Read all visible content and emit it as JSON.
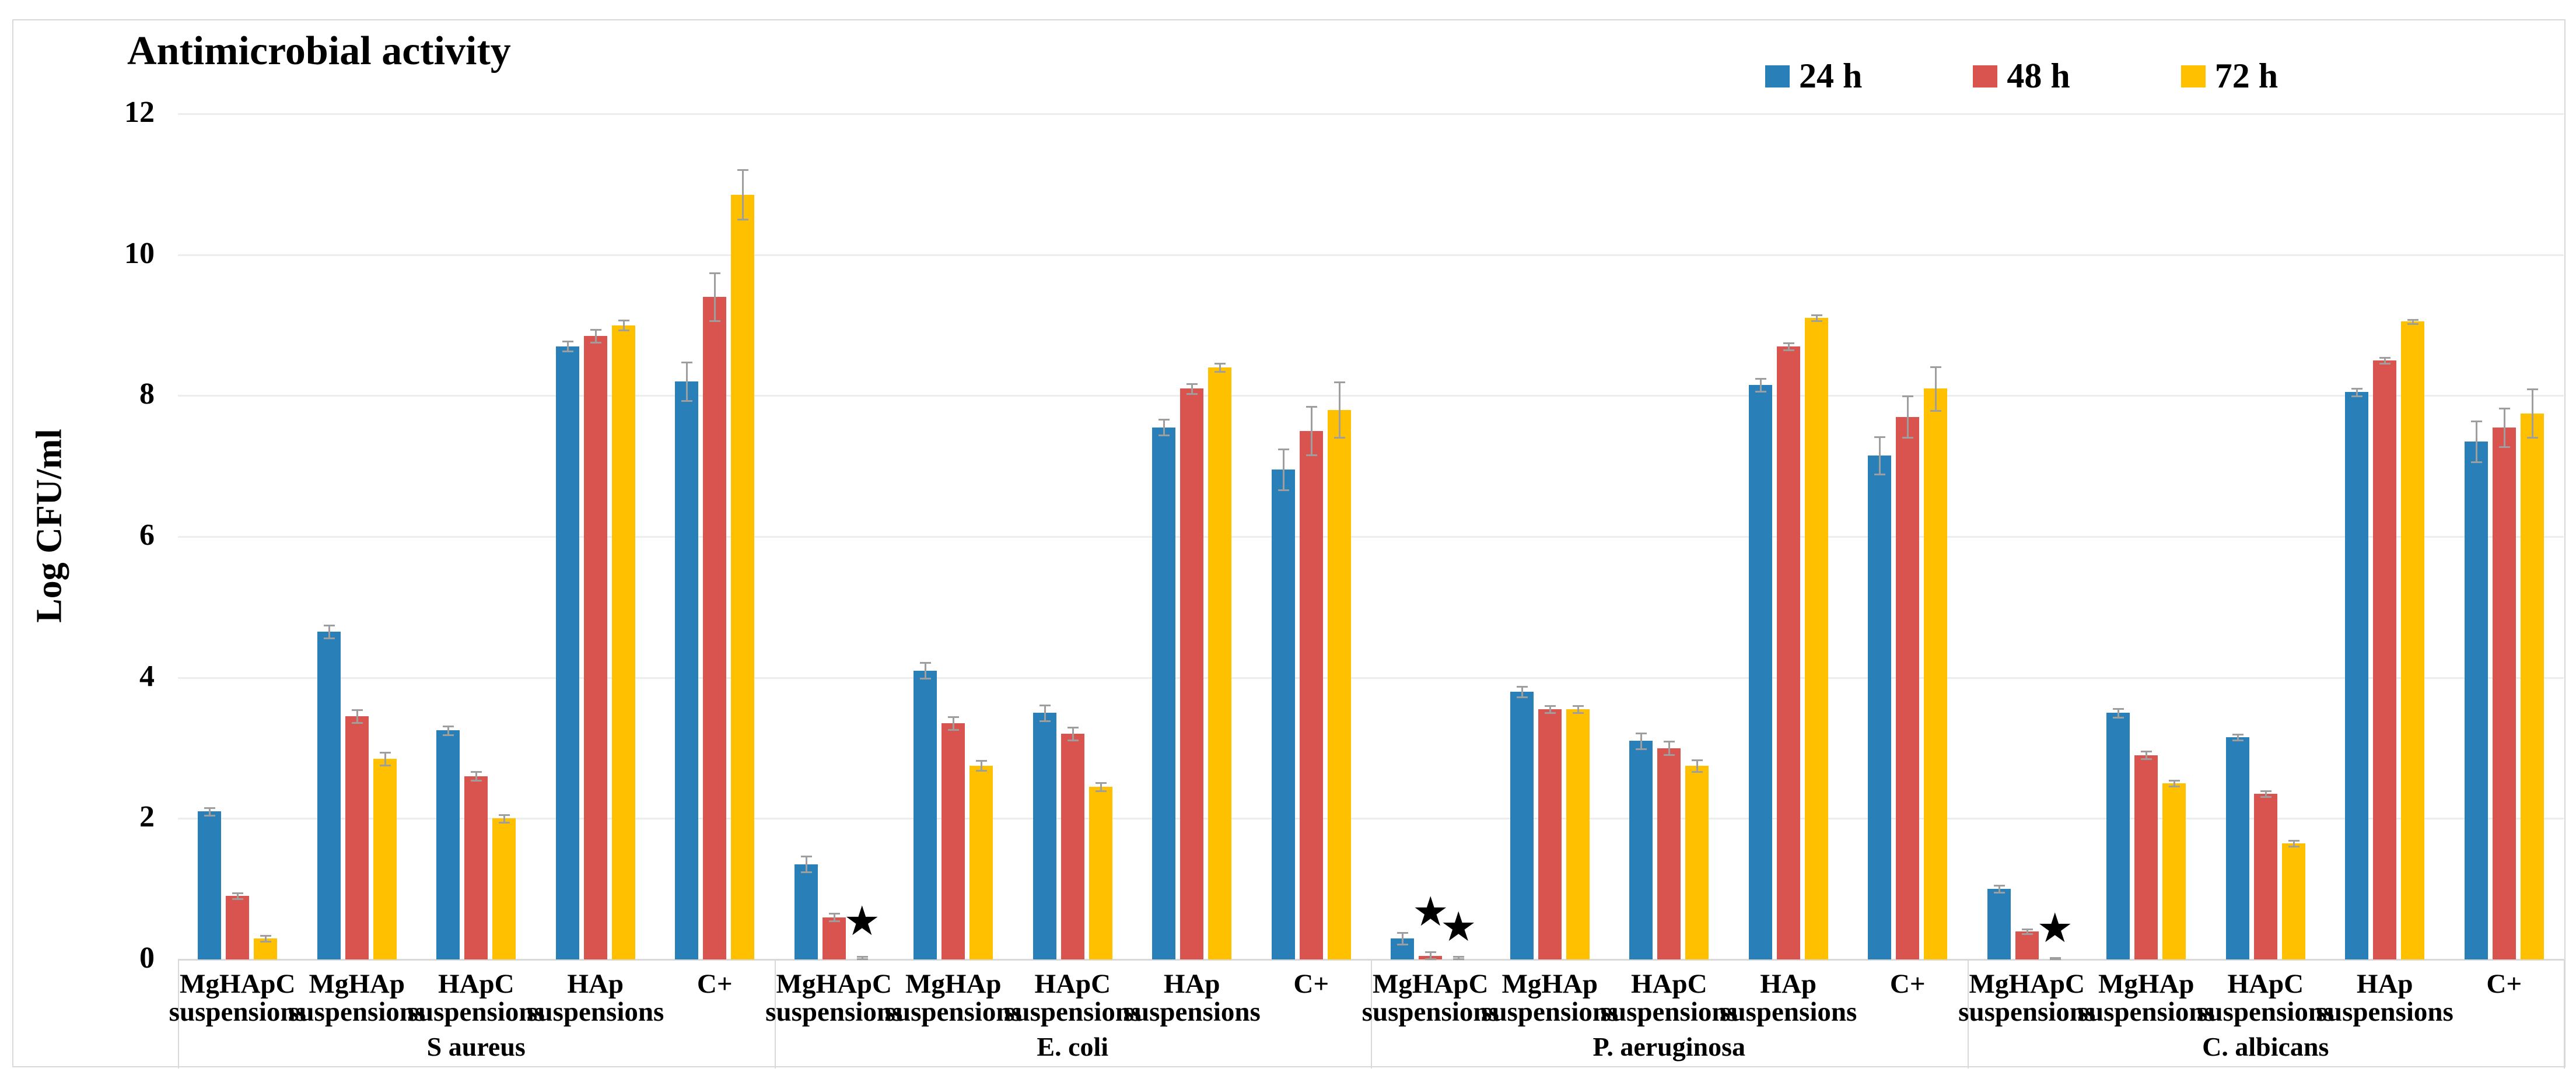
{
  "figure": {
    "title": "Antimicrobial activity",
    "y_axis": {
      "label": "Log CFU/ml"
    }
  },
  "chart_data": {
    "type": "bar",
    "title": "Antimicrobial activity",
    "xlabel": "",
    "ylabel": "Log CFU/ml",
    "ylim": [
      0,
      12
    ],
    "yticks": [
      0,
      2,
      4,
      6,
      8,
      10,
      12
    ],
    "grid": true,
    "legend_position": "top-right",
    "annotation_symbol": "★",
    "series": [
      {
        "name": "24 h",
        "color": "#2980B9"
      },
      {
        "name": "48 h",
        "color": "#D9534F"
      },
      {
        "name": "72 h",
        "color": "#FFC000"
      }
    ],
    "organisms": [
      {
        "name": "S aureus",
        "groups": [
          {
            "label": "MgHApC",
            "sublabel": "suspensions",
            "values": [
              2.1,
              0.9,
              0.3
            ],
            "errors": [
              0.06,
              0.05,
              0.05
            ]
          },
          {
            "label": "MgHAp",
            "sublabel": "suspensions",
            "values": [
              4.65,
              3.45,
              2.85
            ],
            "errors": [
              0.1,
              0.1,
              0.1
            ]
          },
          {
            "label": "HApC",
            "sublabel": "suspensions",
            "values": [
              3.25,
              2.6,
              2.0
            ],
            "errors": [
              0.07,
              0.07,
              0.06
            ]
          },
          {
            "label": "HAp",
            "sublabel": "suspensions",
            "values": [
              8.7,
              8.85,
              9.0
            ],
            "errors": [
              0.08,
              0.1,
              0.08
            ]
          },
          {
            "label": "C+",
            "sublabel": "",
            "values": [
              8.2,
              9.4,
              10.85
            ],
            "errors": [
              0.28,
              0.35,
              0.36
            ]
          }
        ],
        "annotations": []
      },
      {
        "name": "E. coli",
        "groups": [
          {
            "label": "MgHApC",
            "sublabel": "suspensions",
            "values": [
              1.35,
              0.6,
              0
            ],
            "errors": [
              0.12,
              0.06,
              0.05
            ]
          },
          {
            "label": "MgHAp",
            "sublabel": "suspensions",
            "values": [
              4.1,
              3.35,
              2.75
            ],
            "errors": [
              0.12,
              0.1,
              0.08
            ]
          },
          {
            "label": "HApC",
            "sublabel": "suspensions",
            "values": [
              3.5,
              3.2,
              2.45
            ],
            "errors": [
              0.12,
              0.1,
              0.07
            ]
          },
          {
            "label": "HAp",
            "sublabel": "suspensions",
            "values": [
              7.55,
              8.1,
              8.4
            ],
            "errors": [
              0.12,
              0.08,
              0.07
            ]
          },
          {
            "label": "C+",
            "sublabel": "",
            "values": [
              6.95,
              7.5,
              7.8
            ],
            "errors": [
              0.3,
              0.35,
              0.4
            ]
          }
        ],
        "annotations": [
          {
            "group": "MgHApC",
            "slot": 2,
            "value_center": 0.55
          }
        ]
      },
      {
        "name": "P. aeruginosa",
        "groups": [
          {
            "label": "MgHApC",
            "sublabel": "suspensions",
            "values": [
              0.3,
              0.05,
              0
            ],
            "errors": [
              0.09,
              0.07,
              0.05
            ]
          },
          {
            "label": "MgHAp",
            "sublabel": "suspensions",
            "values": [
              3.8,
              3.55,
              3.55
            ],
            "errors": [
              0.08,
              0.06,
              0.06
            ]
          },
          {
            "label": "HApC",
            "sublabel": "suspensions",
            "values": [
              3.1,
              3.0,
              2.75
            ],
            "errors": [
              0.12,
              0.1,
              0.09
            ]
          },
          {
            "label": "HAp",
            "sublabel": "suspensions",
            "values": [
              8.15,
              8.7,
              9.1
            ],
            "errors": [
              0.1,
              0.06,
              0.05
            ]
          },
          {
            "label": "C+",
            "sublabel": "",
            "values": [
              7.15,
              7.7,
              8.1
            ],
            "errors": [
              0.27,
              0.3,
              0.32
            ]
          }
        ],
        "annotations": [
          {
            "group": "MgHApC",
            "slot": 1,
            "value_center": 0.68
          },
          {
            "group": "MgHApC",
            "slot": 2,
            "value_center": 0.46
          }
        ]
      },
      {
        "name": "C. albicans",
        "groups": [
          {
            "label": "MgHApC",
            "sublabel": "suspensions",
            "values": [
              1.0,
              0.4,
              0
            ],
            "errors": [
              0.06,
              0.04,
              0.03
            ]
          },
          {
            "label": "MgHAp",
            "sublabel": "suspensions",
            "values": [
              3.5,
              2.9,
              2.5
            ],
            "errors": [
              0.07,
              0.06,
              0.05
            ]
          },
          {
            "label": "HApC",
            "sublabel": "suspensions",
            "values": [
              3.15,
              2.35,
              1.65
            ],
            "errors": [
              0.05,
              0.05,
              0.05
            ]
          },
          {
            "label": "HAp",
            "sublabel": "suspensions",
            "values": [
              8.05,
              8.5,
              9.05
            ],
            "errors": [
              0.06,
              0.05,
              0.04
            ]
          },
          {
            "label": "C+",
            "sublabel": "",
            "values": [
              7.35,
              7.55,
              7.75
            ],
            "errors": [
              0.3,
              0.28,
              0.35
            ]
          }
        ],
        "annotations": [
          {
            "group": "MgHApC",
            "slot": 2,
            "value_center": 0.45
          }
        ]
      }
    ]
  }
}
